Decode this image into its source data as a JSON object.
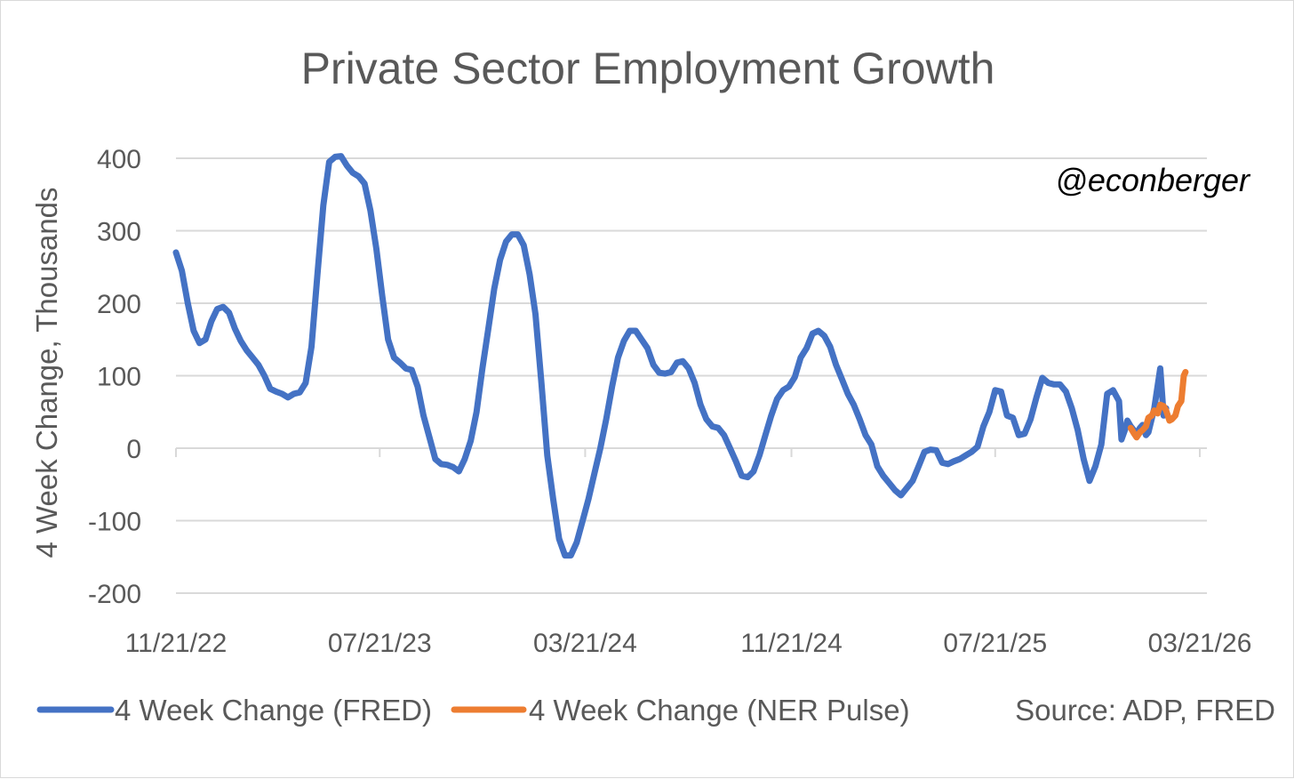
{
  "chart_data": {
    "type": "line",
    "title": "Private Sector Employment Growth",
    "ylabel": "4 Week Change, Thousands",
    "xlabel": "",
    "ylim": [
      -200,
      400
    ],
    "yticks": [
      -200,
      -100,
      0,
      100,
      200,
      300,
      400
    ],
    "xlim": [
      "2022-11-21",
      "2026-03-21"
    ],
    "xtick_labels": [
      "11/21/22",
      "07/21/23",
      "03/21/24",
      "11/21/24",
      "07/21/25",
      "03/21/26"
    ],
    "xtick_dates": [
      "2022-11-21",
      "2023-07-21",
      "2024-03-21",
      "2024-11-21",
      "2025-07-21",
      "2026-03-21"
    ],
    "grid": true,
    "legend_position": "bottom-left",
    "annotation": "@econberger",
    "source_note": "Source: ADP, FRED",
    "series": [
      {
        "name": "4 Week Change (FRED)",
        "color": "#4472c4",
        "points": [
          [
            "2022-11-21",
            270
          ],
          [
            "2022-11-28",
            245
          ],
          [
            "2022-12-05",
            200
          ],
          [
            "2022-12-12",
            162
          ],
          [
            "2022-12-19",
            145
          ],
          [
            "2022-12-26",
            150
          ],
          [
            "2023-01-02",
            175
          ],
          [
            "2023-01-09",
            192
          ],
          [
            "2023-01-16",
            195
          ],
          [
            "2023-01-23",
            187
          ],
          [
            "2023-01-30",
            165
          ],
          [
            "2023-02-06",
            148
          ],
          [
            "2023-02-13",
            135
          ],
          [
            "2023-02-20",
            125
          ],
          [
            "2023-02-27",
            115
          ],
          [
            "2023-03-06",
            100
          ],
          [
            "2023-03-13",
            82
          ],
          [
            "2023-03-20",
            78
          ],
          [
            "2023-03-27",
            75
          ],
          [
            "2023-04-03",
            70
          ],
          [
            "2023-04-10",
            75
          ],
          [
            "2023-04-17",
            77
          ],
          [
            "2023-04-24",
            90
          ],
          [
            "2023-05-01",
            140
          ],
          [
            "2023-05-08",
            240
          ],
          [
            "2023-05-15",
            335
          ],
          [
            "2023-05-22",
            395
          ],
          [
            "2023-05-29",
            402
          ],
          [
            "2023-06-05",
            403
          ],
          [
            "2023-06-12",
            390
          ],
          [
            "2023-06-19",
            380
          ],
          [
            "2023-06-26",
            375
          ],
          [
            "2023-07-03",
            365
          ],
          [
            "2023-07-10",
            328
          ],
          [
            "2023-07-17",
            275
          ],
          [
            "2023-07-24",
            210
          ],
          [
            "2023-07-31",
            150
          ],
          [
            "2023-08-07",
            125
          ],
          [
            "2023-08-14",
            118
          ],
          [
            "2023-08-21",
            110
          ],
          [
            "2023-08-28",
            108
          ],
          [
            "2023-09-04",
            85
          ],
          [
            "2023-09-11",
            45
          ],
          [
            "2023-09-18",
            15
          ],
          [
            "2023-09-25",
            -15
          ],
          [
            "2023-10-02",
            -22
          ],
          [
            "2023-10-09",
            -23
          ],
          [
            "2023-10-16",
            -26
          ],
          [
            "2023-10-23",
            -32
          ],
          [
            "2023-10-30",
            -15
          ],
          [
            "2023-11-06",
            10
          ],
          [
            "2023-11-13",
            50
          ],
          [
            "2023-11-20",
            110
          ],
          [
            "2023-11-27",
            165
          ],
          [
            "2023-12-04",
            220
          ],
          [
            "2023-12-11",
            260
          ],
          [
            "2023-12-18",
            285
          ],
          [
            "2023-12-25",
            295
          ],
          [
            "2024-01-01",
            295
          ],
          [
            "2024-01-08",
            280
          ],
          [
            "2024-01-15",
            240
          ],
          [
            "2024-01-22",
            185
          ],
          [
            "2024-01-29",
            90
          ],
          [
            "2024-02-05",
            -10
          ],
          [
            "2024-02-12",
            -70
          ],
          [
            "2024-02-19",
            -125
          ],
          [
            "2024-02-26",
            -148
          ],
          [
            "2024-03-04",
            -148
          ],
          [
            "2024-03-11",
            -130
          ],
          [
            "2024-03-18",
            -100
          ],
          [
            "2024-03-25",
            -70
          ],
          [
            "2024-04-01",
            -35
          ],
          [
            "2024-04-08",
            0
          ],
          [
            "2024-04-15",
            40
          ],
          [
            "2024-04-22",
            85
          ],
          [
            "2024-04-29",
            125
          ],
          [
            "2024-05-06",
            148
          ],
          [
            "2024-05-13",
            162
          ],
          [
            "2024-05-20",
            162
          ],
          [
            "2024-05-27",
            150
          ],
          [
            "2024-06-03",
            138
          ],
          [
            "2024-06-10",
            115
          ],
          [
            "2024-06-17",
            104
          ],
          [
            "2024-06-24",
            103
          ],
          [
            "2024-07-01",
            105
          ],
          [
            "2024-07-08",
            118
          ],
          [
            "2024-07-15",
            120
          ],
          [
            "2024-07-22",
            110
          ],
          [
            "2024-07-29",
            90
          ],
          [
            "2024-08-05",
            60
          ],
          [
            "2024-08-12",
            40
          ],
          [
            "2024-08-19",
            30
          ],
          [
            "2024-08-26",
            28
          ],
          [
            "2024-09-02",
            18
          ],
          [
            "2024-09-09",
            0
          ],
          [
            "2024-09-16",
            -18
          ],
          [
            "2024-09-23",
            -38
          ],
          [
            "2024-09-30",
            -40
          ],
          [
            "2024-10-07",
            -32
          ],
          [
            "2024-10-14",
            -10
          ],
          [
            "2024-10-21",
            18
          ],
          [
            "2024-10-28",
            45
          ],
          [
            "2024-11-04",
            68
          ],
          [
            "2024-11-11",
            80
          ],
          [
            "2024-11-18",
            85
          ],
          [
            "2024-11-25",
            98
          ],
          [
            "2024-12-02",
            125
          ],
          [
            "2024-12-09",
            138
          ],
          [
            "2024-12-16",
            158
          ],
          [
            "2024-12-23",
            162
          ],
          [
            "2024-12-30",
            155
          ],
          [
            "2025-01-06",
            140
          ],
          [
            "2025-01-13",
            115
          ],
          [
            "2025-01-20",
            95
          ],
          [
            "2025-01-27",
            75
          ],
          [
            "2025-02-03",
            60
          ],
          [
            "2025-02-10",
            40
          ],
          [
            "2025-02-17",
            18
          ],
          [
            "2025-02-24",
            5
          ],
          [
            "2025-03-03",
            -25
          ],
          [
            "2025-03-10",
            -38
          ],
          [
            "2025-03-17",
            -48
          ],
          [
            "2025-03-24",
            -58
          ],
          [
            "2025-03-31",
            -65
          ],
          [
            "2025-04-07",
            -55
          ],
          [
            "2025-04-14",
            -45
          ],
          [
            "2025-04-21",
            -25
          ],
          [
            "2025-04-28",
            -5
          ],
          [
            "2025-05-05",
            -2
          ],
          [
            "2025-05-12",
            -3
          ],
          [
            "2025-05-19",
            -20
          ],
          [
            "2025-05-26",
            -22
          ],
          [
            "2025-06-02",
            -18
          ],
          [
            "2025-06-09",
            -15
          ],
          [
            "2025-06-16",
            -10
          ],
          [
            "2025-06-23",
            -5
          ],
          [
            "2025-06-30",
            2
          ],
          [
            "2025-07-07",
            30
          ],
          [
            "2025-07-14",
            50
          ],
          [
            "2025-07-21",
            80
          ],
          [
            "2025-07-28",
            78
          ],
          [
            "2025-08-04",
            45
          ],
          [
            "2025-08-11",
            42
          ],
          [
            "2025-08-18",
            18
          ],
          [
            "2025-08-25",
            20
          ],
          [
            "2025-09-01",
            40
          ],
          [
            "2025-09-08",
            70
          ],
          [
            "2025-09-15",
            97
          ],
          [
            "2025-09-22",
            90
          ],
          [
            "2025-09-29",
            88
          ],
          [
            "2025-10-06",
            88
          ],
          [
            "2025-10-13",
            78
          ],
          [
            "2025-10-20",
            55
          ],
          [
            "2025-10-27",
            25
          ],
          [
            "2025-11-03",
            -15
          ],
          [
            "2025-11-10",
            -45
          ],
          [
            "2025-11-17",
            -25
          ],
          [
            "2025-11-24",
            5
          ],
          [
            "2025-12-01",
            75
          ],
          [
            "2025-12-08",
            80
          ],
          [
            "2025-12-15",
            65
          ],
          [
            "2025-12-18",
            12
          ],
          [
            "2025-12-22",
            25
          ],
          [
            "2025-12-25",
            38
          ],
          [
            "2025-12-29",
            30
          ],
          [
            "2026-01-05",
            20
          ],
          [
            "2026-01-09",
            28
          ],
          [
            "2026-01-12",
            32
          ],
          [
            "2026-01-16",
            18
          ],
          [
            "2026-01-19",
            22
          ],
          [
            "2026-01-26",
            55
          ],
          [
            "2026-02-02",
            110
          ],
          [
            "2026-02-06",
            45
          ],
          [
            "2026-02-09",
            55
          ]
        ]
      },
      {
        "name": "4 Week Change (NER Pulse)",
        "color": "#ed7d31",
        "points": [
          [
            "2025-12-29",
            28
          ],
          [
            "2026-01-02",
            20
          ],
          [
            "2026-01-05",
            15
          ],
          [
            "2026-01-09",
            22
          ],
          [
            "2026-01-12",
            25
          ],
          [
            "2026-01-16",
            30
          ],
          [
            "2026-01-19",
            42
          ],
          [
            "2026-01-23",
            45
          ],
          [
            "2026-01-26",
            52
          ],
          [
            "2026-01-30",
            48
          ],
          [
            "2026-02-02",
            60
          ],
          [
            "2026-02-06",
            58
          ],
          [
            "2026-02-09",
            52
          ],
          [
            "2026-02-13",
            38
          ],
          [
            "2026-02-16",
            40
          ],
          [
            "2026-02-20",
            45
          ],
          [
            "2026-02-23",
            58
          ],
          [
            "2026-02-27",
            65
          ],
          [
            "2026-03-02",
            100
          ],
          [
            "2026-03-04",
            105
          ]
        ]
      }
    ]
  }
}
